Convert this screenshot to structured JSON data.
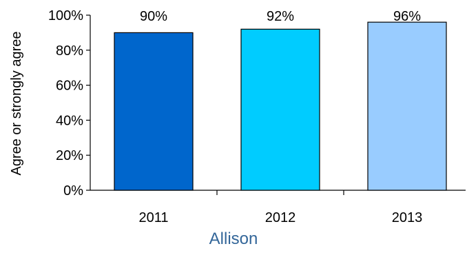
{
  "chart_data": {
    "type": "bar",
    "categories": [
      "2011",
      "2012",
      "2013"
    ],
    "values": [
      90,
      92,
      96
    ],
    "data_labels": [
      "90%",
      "92%",
      "96%"
    ],
    "ylabel": "Agree or strongly agree",
    "xlabel": "Allison",
    "ylim": [
      0,
      100
    ],
    "yticks": [
      0,
      20,
      40,
      60,
      80,
      100
    ],
    "ytick_labels": [
      "0%",
      "20%",
      "40%",
      "60%",
      "80%",
      "100%"
    ],
    "grid": false,
    "legend": "none",
    "bar_colors": [
      "#0066CC",
      "#00CCFF",
      "#99CCFF"
    ],
    "caption_color": "#336699"
  }
}
